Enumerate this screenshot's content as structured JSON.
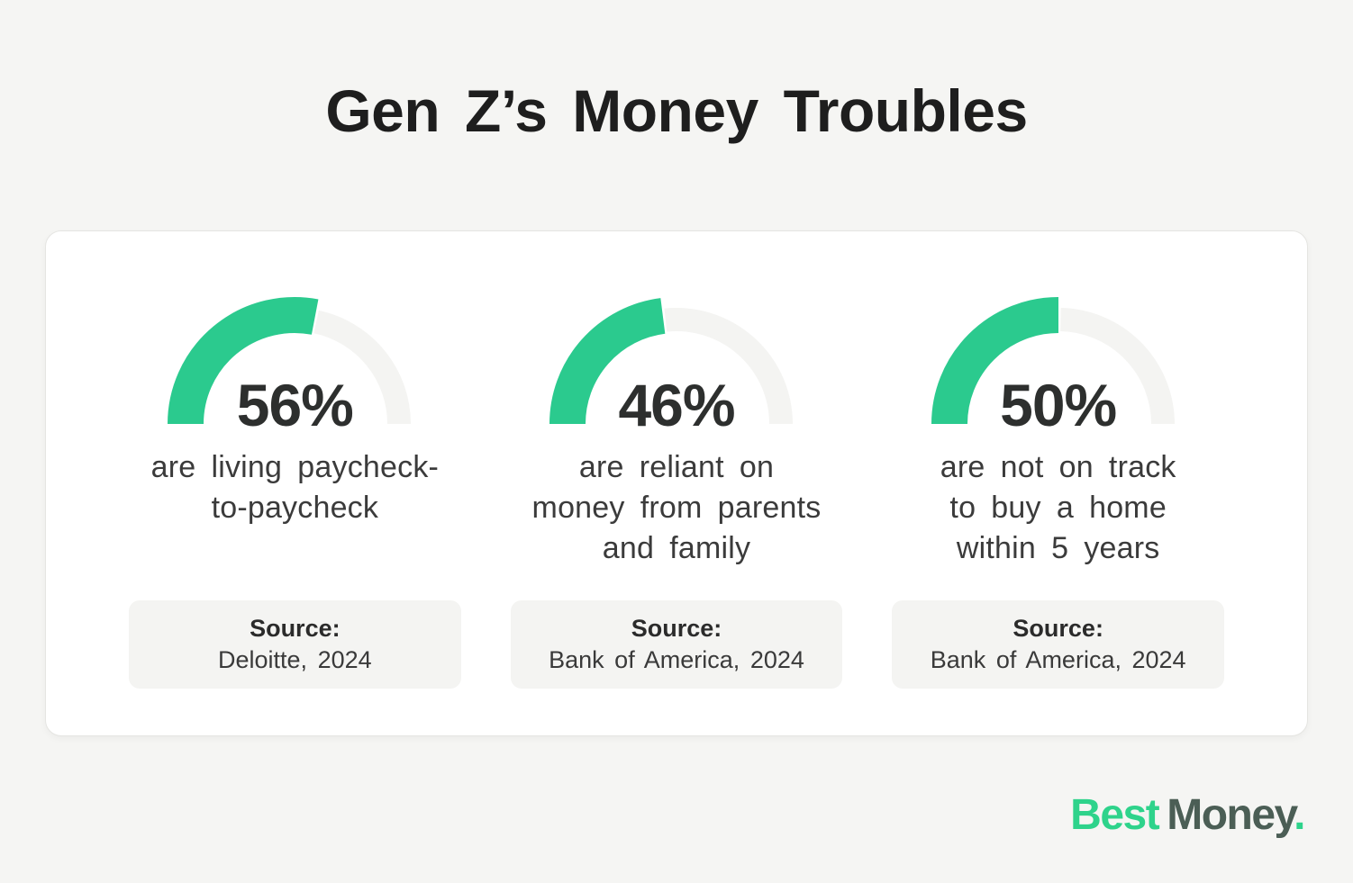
{
  "page": {
    "title": "Gen Z’s Money Troubles",
    "background": "#f5f5f3",
    "card_background": "#ffffff"
  },
  "colors": {
    "accent_green": "#2bca8e",
    "track_gray": "#f4f4f2",
    "title_text": "#1e1e1e",
    "body_text": "#3b3b3b",
    "logo_green": "#2ed38b",
    "logo_dark": "#4b5e55"
  },
  "chart_data": [
    {
      "type": "gauge",
      "value": 56,
      "max": 100,
      "value_label": "56%",
      "description": "are living paycheck-\nto-paycheck",
      "source_label": "Source:",
      "source": "Deloitte, 2024"
    },
    {
      "type": "gauge",
      "value": 46,
      "max": 100,
      "value_label": "46%",
      "description": "are reliant on\nmoney from parents\nand family",
      "source_label": "Source:",
      "source": "Bank of America, 2024"
    },
    {
      "type": "gauge",
      "value": 50,
      "max": 100,
      "value_label": "50%",
      "description": "are not on track\nto buy a home\nwithin 5 years",
      "source_label": "Source:",
      "source": "Bank of America, 2024"
    }
  ],
  "footer": {
    "logo_best": "Best",
    "logo_money": "Money",
    "logo_period": "."
  }
}
